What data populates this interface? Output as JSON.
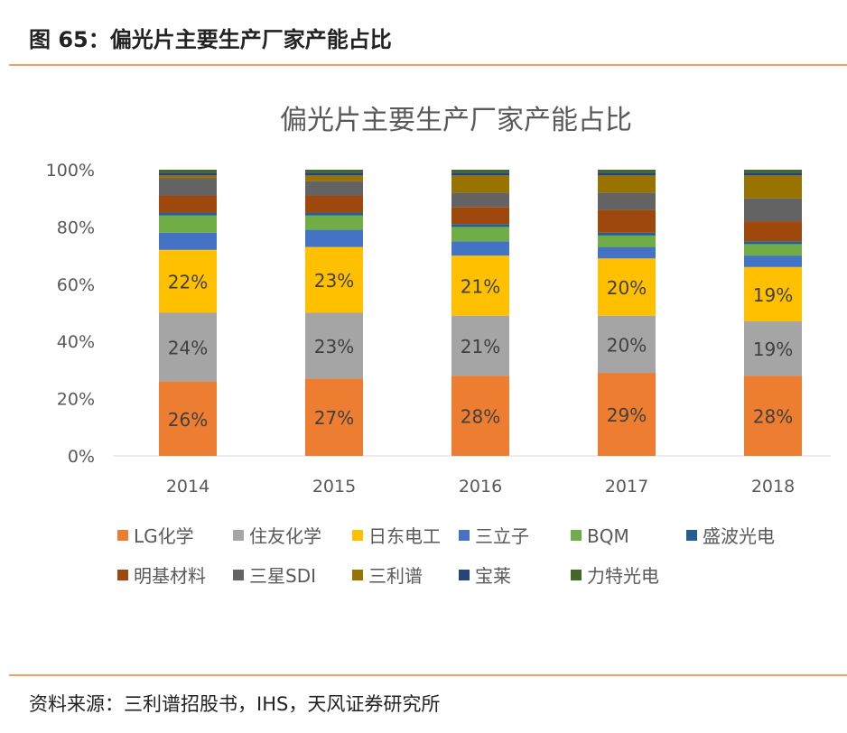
{
  "header": {
    "title": "图 65：偏光片主要生产厂家产能占比"
  },
  "source": "资料来源：三利谱招股书，IHS，天风证券研究所",
  "chart_data": {
    "type": "bar",
    "stacked": true,
    "title": "偏光片主要生产厂家产能占比",
    "categories": [
      "2014",
      "2015",
      "2016",
      "2017",
      "2018"
    ],
    "ylim": [
      0,
      100
    ],
    "yticks": [
      "0%",
      "20%",
      "40%",
      "60%",
      "80%",
      "100%"
    ],
    "grid": false,
    "legend": "bottom",
    "series": [
      {
        "name": "LG化学",
        "color": "#ED7D31",
        "values": [
          26,
          27,
          28,
          29,
          28
        ],
        "labels": [
          "26%",
          "27%",
          "28%",
          "29%",
          "28%"
        ]
      },
      {
        "name": "住友化学",
        "color": "#A5A5A5",
        "values": [
          24,
          23,
          21,
          20,
          19
        ],
        "labels": [
          "24%",
          "23%",
          "21%",
          "20%",
          "19%"
        ]
      },
      {
        "name": "日东电工",
        "color": "#FFC000",
        "values": [
          22,
          23,
          21,
          20,
          19
        ],
        "labels": [
          "22%",
          "23%",
          "21%",
          "20%",
          "19%"
        ]
      },
      {
        "name": "三立子",
        "color": "#4472C4",
        "values": [
          6,
          6,
          5,
          4,
          4
        ]
      },
      {
        "name": "BQM",
        "color": "#70AD47",
        "values": [
          6,
          5,
          5,
          4,
          4
        ]
      },
      {
        "name": "盛波光电",
        "color": "#255E91",
        "values": [
          1,
          1,
          1,
          1,
          1
        ]
      },
      {
        "name": "明基材料",
        "color": "#9E480E",
        "values": [
          6,
          6,
          6,
          8,
          7
        ]
      },
      {
        "name": "三星SDI",
        "color": "#636363",
        "values": [
          6,
          5,
          5,
          6,
          8
        ]
      },
      {
        "name": "三利谱",
        "color": "#997300",
        "values": [
          1,
          2,
          6,
          6,
          8
        ]
      },
      {
        "name": "宝莱",
        "color": "#264478",
        "values": [
          1,
          1,
          1,
          1,
          1
        ]
      },
      {
        "name": "力特光电",
        "color": "#43682B",
        "values": [
          1,
          1,
          1,
          1,
          1
        ]
      }
    ]
  }
}
